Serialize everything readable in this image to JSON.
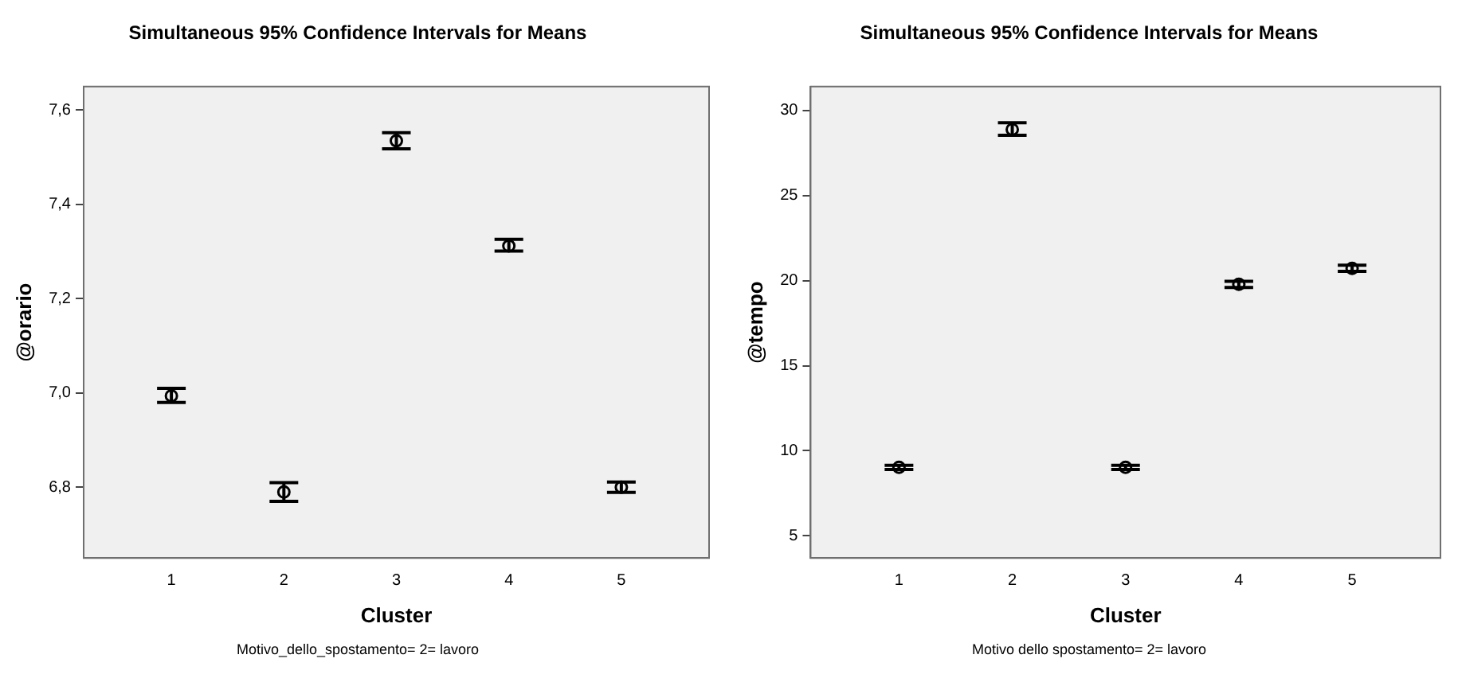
{
  "chart_data": [
    {
      "type": "scatter",
      "title": "Simultaneous 95% Confidence Intervals for Means",
      "xlabel": "Cluster",
      "ylabel": "@orario",
      "annotations": [
        "Motivo_dello_spostamento= 2= lavoro"
      ],
      "color": "#000000",
      "marker": "circle",
      "x": [
        1,
        2,
        3,
        4,
        5
      ],
      "values": [
        6.994,
        6.79,
        7.535,
        7.312,
        6.8
      ],
      "errors": [
        [
          6.98,
          7.01
        ],
        [
          6.77,
          6.81
        ],
        [
          7.518,
          7.552
        ],
        [
          7.301,
          7.326
        ],
        [
          6.789,
          6.811
        ]
      ],
      "xlim": [
        0.22,
        5.78
      ],
      "xticks": [
        1,
        2,
        3,
        4,
        5
      ],
      "ylim": [
        6.65,
        7.65
      ],
      "yticks": [
        {
          "value": 6.8,
          "label": "6,8"
        },
        {
          "value": 7.0,
          "label": "7,0"
        },
        {
          "value": 7.2,
          "label": "7,2"
        },
        {
          "value": 7.4,
          "label": "7,4"
        },
        {
          "value": 7.6,
          "label": "7,6"
        }
      ]
    },
    {
      "type": "scatter",
      "title": "Simultaneous 95% Confidence Intervals for Means",
      "xlabel": "Cluster",
      "ylabel": "@tempo",
      "annotations": [
        "Motivo dello spostamento= 2= lavoro"
      ],
      "color": "#000000",
      "marker": "circle",
      "x": [
        1,
        2,
        3,
        4,
        5
      ],
      "values": [
        9.03,
        28.88,
        9.03,
        19.78,
        20.72
      ],
      "errors": [
        [
          8.9,
          9.15
        ],
        [
          28.54,
          29.27
        ],
        [
          8.9,
          9.15
        ],
        [
          19.6,
          19.96
        ],
        [
          20.54,
          20.9
        ]
      ],
      "xlim": [
        0.22,
        5.78
      ],
      "xticks": [
        1,
        2,
        3,
        4,
        5
      ],
      "ylim": [
        3.7,
        31.4
      ],
      "yticks": [
        5,
        10,
        15,
        20,
        25,
        30
      ]
    }
  ]
}
